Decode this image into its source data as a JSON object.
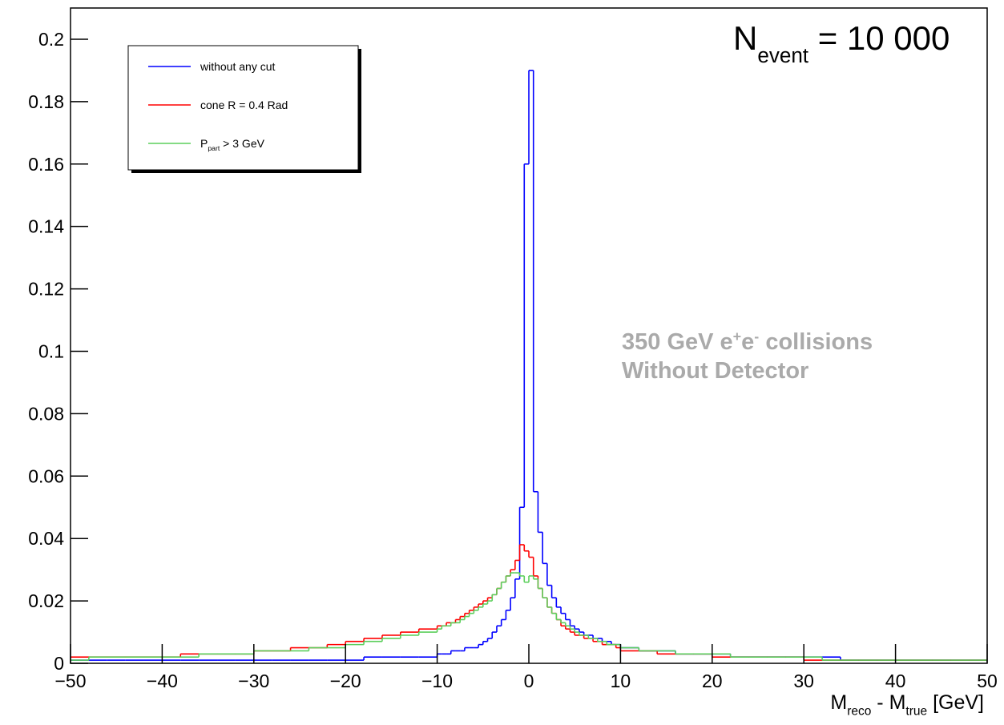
{
  "chart_data": {
    "type": "histogram",
    "x_label": [
      "M",
      "reco",
      " - M",
      "true",
      " [GeV]"
    ],
    "event_label": [
      "N",
      "event",
      " = 10 000"
    ],
    "note": [
      [
        "350 GeV e",
        "+",
        "e",
        "-",
        " collisions"
      ],
      [
        "Without Detector"
      ]
    ],
    "bins": [
      -50,
      -48,
      -46,
      -44,
      -42,
      -40,
      -38,
      -36,
      -34,
      -32,
      -30,
      -28,
      -26,
      -24,
      -22,
      -20,
      -18,
      -16,
      -14,
      -12,
      -10,
      -9.5,
      -9,
      -8.5,
      -8,
      -7.5,
      -7,
      -6.5,
      -6,
      -5.5,
      -5,
      -4.5,
      -4,
      -3.5,
      -3,
      -2.5,
      -2,
      -1.5,
      -1,
      -0.5,
      0,
      0.5,
      1,
      1.5,
      2,
      2.5,
      3,
      3.5,
      4,
      4.5,
      5,
      5.5,
      6,
      6.5,
      7,
      7.5,
      8,
      8.5,
      9,
      9.5,
      10,
      12,
      14,
      16,
      18,
      20,
      22,
      24,
      26,
      28,
      30,
      32,
      34,
      36,
      38,
      40,
      42,
      44,
      46,
      48,
      50
    ],
    "series": [
      {
        "name": [
          "without any cut"
        ],
        "color": "#0000ff",
        "values": [
          0.001,
          0.001,
          0.001,
          0.001,
          0.001,
          0.001,
          0.001,
          0.001,
          0.001,
          0.001,
          0.001,
          0.001,
          0.001,
          0.001,
          0.001,
          0.001,
          0.002,
          0.002,
          0.002,
          0.002,
          0.003,
          0.003,
          0.003,
          0.004,
          0.004,
          0.004,
          0.005,
          0.005,
          0.005,
          0.006,
          0.007,
          0.008,
          0.01,
          0.012,
          0.014,
          0.017,
          0.021,
          0.027,
          0.05,
          0.16,
          0.19,
          0.055,
          0.042,
          0.032,
          0.025,
          0.021,
          0.018,
          0.016,
          0.014,
          0.012,
          0.011,
          0.01,
          0.009,
          0.009,
          0.008,
          0.008,
          0.007,
          0.007,
          0.006,
          0.006,
          0.005,
          0.004,
          0.004,
          0.003,
          0.003,
          0.003,
          0.002,
          0.002,
          0.002,
          0.002,
          0.002,
          0.002,
          0.001,
          0.001,
          0.001,
          0.001,
          0.001,
          0.001,
          0.001,
          0.001
        ]
      },
      {
        "name": [
          "cone R = 0.4 Rad"
        ],
        "color": "#ff0000",
        "values": [
          0.002,
          0.002,
          0.002,
          0.002,
          0.002,
          0.002,
          0.003,
          0.003,
          0.003,
          0.003,
          0.004,
          0.004,
          0.005,
          0.005,
          0.006,
          0.007,
          0.008,
          0.009,
          0.01,
          0.011,
          0.012,
          0.012,
          0.013,
          0.013,
          0.014,
          0.015,
          0.016,
          0.017,
          0.018,
          0.019,
          0.02,
          0.021,
          0.022,
          0.024,
          0.026,
          0.028,
          0.03,
          0.033,
          0.038,
          0.036,
          0.034,
          0.028,
          0.024,
          0.021,
          0.018,
          0.016,
          0.014,
          0.012,
          0.011,
          0.01,
          0.009,
          0.009,
          0.008,
          0.008,
          0.007,
          0.007,
          0.006,
          0.006,
          0.006,
          0.005,
          0.004,
          0.004,
          0.003,
          0.003,
          0.003,
          0.002,
          0.002,
          0.002,
          0.002,
          0.002,
          0.001,
          0.001,
          0.001,
          0.001,
          0.001,
          0.001,
          0.001,
          0.001,
          0.001,
          0.001
        ]
      },
      {
        "name": [
          "P",
          "part",
          " > 3 GeV"
        ],
        "color": "#5ccf5c",
        "values": [
          0.001,
          0.002,
          0.002,
          0.002,
          0.002,
          0.002,
          0.002,
          0.003,
          0.003,
          0.003,
          0.004,
          0.004,
          0.004,
          0.005,
          0.005,
          0.006,
          0.007,
          0.008,
          0.009,
          0.01,
          0.011,
          0.012,
          0.012,
          0.013,
          0.013,
          0.014,
          0.015,
          0.016,
          0.017,
          0.018,
          0.019,
          0.02,
          0.022,
          0.024,
          0.026,
          0.028,
          0.029,
          0.029,
          0.028,
          0.026,
          0.028,
          0.027,
          0.024,
          0.021,
          0.018,
          0.016,
          0.014,
          0.013,
          0.012,
          0.011,
          0.01,
          0.009,
          0.009,
          0.008,
          0.008,
          0.007,
          0.007,
          0.006,
          0.006,
          0.006,
          0.005,
          0.004,
          0.004,
          0.003,
          0.003,
          0.003,
          0.002,
          0.002,
          0.002,
          0.002,
          0.002,
          0.001,
          0.001,
          0.001,
          0.001,
          0.001,
          0.001,
          0.001,
          0.001,
          0.001
        ]
      }
    ],
    "xlim": [
      -50,
      50
    ],
    "ylim": [
      0,
      0.21
    ],
    "xticks": [
      {
        "value": -50,
        "label": "−50"
      },
      {
        "value": -40,
        "label": "−40"
      },
      {
        "value": -30,
        "label": "−30"
      },
      {
        "value": -20,
        "label": "−20"
      },
      {
        "value": -10,
        "label": "−10"
      },
      0,
      10,
      20,
      30,
      40,
      50
    ],
    "yticks": [
      0,
      0.02,
      0.04,
      0.06,
      0.08,
      0.1,
      0.12,
      0.14,
      0.16,
      0.18,
      0.2
    ],
    "legend": "top-left"
  }
}
